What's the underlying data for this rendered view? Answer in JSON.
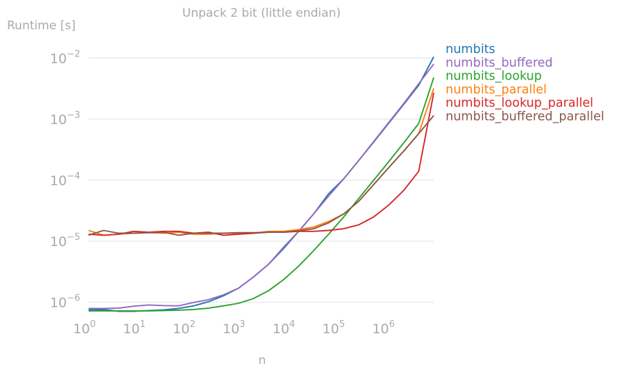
{
  "chart_data": {
    "type": "line",
    "title": "Unpack 2 bit (little endian)",
    "ylabel": "Runtime [s]",
    "xlabel": "n",
    "xscale": "log",
    "yscale": "log",
    "xlim": [
      1,
      8388608
    ],
    "ylim": [
      7e-07,
      0.02
    ],
    "grid": "horizontal",
    "legend": "outside-right",
    "x_ticks": [
      {
        "value": 1,
        "base": "10",
        "exp": "0"
      },
      {
        "value": 10,
        "base": "10",
        "exp": "1"
      },
      {
        "value": 100,
        "base": "10",
        "exp": "2"
      },
      {
        "value": 1000,
        "base": "10",
        "exp": "3"
      },
      {
        "value": 10000,
        "base": "10",
        "exp": "4"
      },
      {
        "value": 100000,
        "base": "10",
        "exp": "5"
      },
      {
        "value": 1000000,
        "base": "10",
        "exp": "6"
      }
    ],
    "y_ticks": [
      {
        "value": 1e-06,
        "base": "10",
        "exp": "−6"
      },
      {
        "value": 1e-05,
        "base": "10",
        "exp": "−5"
      },
      {
        "value": 0.0001,
        "base": "10",
        "exp": "−4"
      },
      {
        "value": 0.001,
        "base": "10",
        "exp": "−3"
      },
      {
        "value": 0.01,
        "base": "10",
        "exp": "−2"
      }
    ],
    "x": [
      1,
      2,
      4,
      8,
      16,
      32,
      64,
      128,
      256,
      512,
      1024,
      2048,
      4096,
      8192,
      16384,
      32768,
      65536,
      131072,
      262144,
      524288,
      1048576,
      2097152,
      4194304,
      8388608
    ],
    "series": [
      {
        "name": "numbits",
        "color": "#1f77b4",
        "values": [
          7.5e-07,
          7.6e-07,
          7.1e-07,
          7.1e-07,
          7.3e-07,
          7.5e-07,
          7.9e-07,
          8.7e-07,
          1.02e-06,
          1.28e-06,
          1.7e-06,
          2.6e-06,
          4.2e-06,
          7.6e-06,
          1.45e-05,
          2.8e-05,
          6e-05,
          0.000105,
          0.00021,
          0.00042,
          0.00086,
          0.00175,
          0.0036,
          0.0105
        ]
      },
      {
        "name": "numbits_buffered",
        "color": "#9467bd",
        "values": [
          7.9e-07,
          7.9e-07,
          8e-07,
          8.6e-07,
          9e-07,
          8.8e-07,
          8.7e-07,
          9.9e-07,
          1.1e-06,
          1.32e-06,
          1.7e-06,
          2.6e-06,
          4.2e-06,
          8e-06,
          1.45e-05,
          2.8e-05,
          5.5e-05,
          0.000105,
          0.00021,
          0.00043,
          0.00088,
          0.0018,
          0.0038,
          0.008
        ]
      },
      {
        "name": "numbits_lookup",
        "color": "#2ca02c",
        "values": [
          7.2e-07,
          7.2e-07,
          7.2e-07,
          7.2e-07,
          7.2e-07,
          7.3e-07,
          7.4e-07,
          7.6e-07,
          8e-07,
          8.7e-07,
          9.6e-07,
          1.15e-06,
          1.55e-06,
          2.35e-06,
          3.9e-06,
          7e-06,
          1.3e-05,
          2.5e-05,
          5e-05,
          0.0001,
          0.0002,
          0.00041,
          0.00085,
          0.0048
        ]
      },
      {
        "name": "numbits_parallel",
        "color": "#ff7f0e",
        "values": [
          1.5e-05,
          1.25e-05,
          1.3e-05,
          1.35e-05,
          1.38e-05,
          1.35e-05,
          1.4e-05,
          1.3e-05,
          1.3e-05,
          1.35e-05,
          1.35e-05,
          1.35e-05,
          1.45e-05,
          1.45e-05,
          1.55e-05,
          1.7e-05,
          2.1e-05,
          2.8e-05,
          4.5e-05,
          8.5e-05,
          0.00016,
          0.0003,
          0.00058,
          0.0032
        ]
      },
      {
        "name": "numbits_lookup_parallel",
        "color": "#d62728",
        "values": [
          1.3e-05,
          1.25e-05,
          1.3e-05,
          1.45e-05,
          1.4e-05,
          1.45e-05,
          1.45e-05,
          1.35e-05,
          1.4e-05,
          1.25e-05,
          1.3e-05,
          1.35e-05,
          1.4e-05,
          1.4e-05,
          1.45e-05,
          1.45e-05,
          1.5e-05,
          1.6e-05,
          1.85e-05,
          2.5e-05,
          3.9e-05,
          6.8e-05,
          0.00014,
          0.0027
        ]
      },
      {
        "name": "numbits_buffered_parallel",
        "color": "#8c564b",
        "values": [
          1.25e-05,
          1.5e-05,
          1.35e-05,
          1.35e-05,
          1.38e-05,
          1.4e-05,
          1.25e-05,
          1.35e-05,
          1.35e-05,
          1.35e-05,
          1.38e-05,
          1.38e-05,
          1.4e-05,
          1.4e-05,
          1.48e-05,
          1.6e-05,
          2e-05,
          2.8e-05,
          4.5e-05,
          8.5e-05,
          0.00016,
          0.0003,
          0.00058,
          0.00115
        ]
      }
    ]
  }
}
